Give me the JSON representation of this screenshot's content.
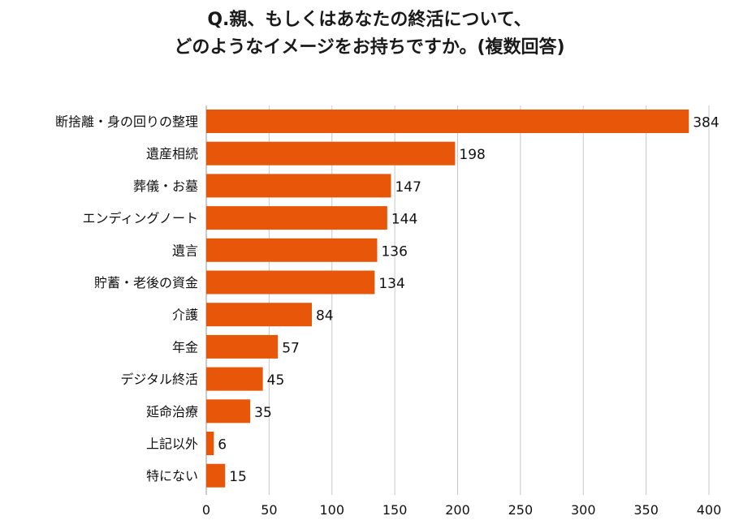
{
  "chart_data": {
    "type": "bar",
    "orientation": "horizontal",
    "title": [
      "Q.親、もしくはあなたの終活について、",
      "どのようなイメージをお持ちですか。(複数回答)"
    ],
    "categories": [
      "断捨離・身の回りの整理",
      "遺産相続",
      "葬儀・お墓",
      "エンディングノート",
      "遺言",
      "貯蓄・老後の資金",
      "介護",
      "年金",
      "デジタル終活",
      "延命治療",
      "上記以外",
      "特にない"
    ],
    "values": [
      384,
      198,
      147,
      144,
      136,
      134,
      84,
      57,
      45,
      35,
      6,
      15
    ],
    "xlim": [
      0,
      400
    ],
    "xticks": [
      "0",
      "50",
      "100",
      "150",
      "200",
      "250",
      "300",
      "350",
      "400"
    ],
    "xlabel": "",
    "ylabel": "",
    "grid": "vertical",
    "legend": "none",
    "data_labels": true,
    "bar_color": "#E8560A",
    "grid_color": "#c8c8c8"
  }
}
